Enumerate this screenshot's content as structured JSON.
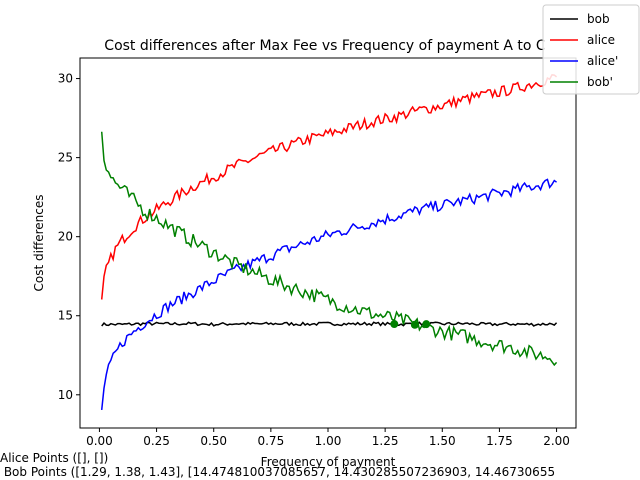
{
  "chart_data": {
    "type": "line",
    "title": "Cost differences after Max Fee vs Frequency of payment A to C",
    "xlabel": "Frequency of payment",
    "ylabel": "Cost differences",
    "xlim": [
      -0.085,
      2.085
    ],
    "ylim": [
      7.9,
      31.3
    ],
    "xticks": [
      "0.00",
      "0.25",
      "0.50",
      "0.75",
      "1.00",
      "1.25",
      "1.50",
      "1.75",
      "2.00"
    ],
    "yticks": [
      "10",
      "15",
      "20",
      "25",
      "30"
    ],
    "grid": false,
    "legend_position": "top-right",
    "series": [
      {
        "name": "bob",
        "color": "#000000",
        "x": [
          0.01,
          0.1,
          0.2,
          0.3,
          0.4,
          0.5,
          0.6,
          0.7,
          0.8,
          0.9,
          1.0,
          1.1,
          1.2,
          1.3,
          1.4,
          1.5,
          1.6,
          1.7,
          1.8,
          1.9,
          2.0
        ],
        "y": [
          14.45,
          14.45,
          14.5,
          14.48,
          14.5,
          14.45,
          14.5,
          14.48,
          14.5,
          14.47,
          14.5,
          14.48,
          14.5,
          14.45,
          14.5,
          14.48,
          14.5,
          14.45,
          14.48,
          14.45,
          14.5
        ]
      },
      {
        "name": "alice",
        "color": "#ff0000",
        "x": [
          0.01,
          0.02,
          0.03,
          0.05,
          0.07,
          0.1,
          0.15,
          0.2,
          0.25,
          0.3,
          0.4,
          0.5,
          0.6,
          0.7,
          0.8,
          0.9,
          1.0,
          1.1,
          1.2,
          1.3,
          1.4,
          1.5,
          1.6,
          1.7,
          1.8,
          1.9,
          2.0
        ],
        "y": [
          15.8,
          17.2,
          17.9,
          18.6,
          19.2,
          19.8,
          20.6,
          21.2,
          21.7,
          22.2,
          23.1,
          23.8,
          24.5,
          25.1,
          25.6,
          26.1,
          26.5,
          26.9,
          27.3,
          27.6,
          28.0,
          28.3,
          28.7,
          29.0,
          29.3,
          29.7,
          30.1
        ]
      },
      {
        "name": "alice'",
        "color": "#0000ff",
        "x": [
          0.01,
          0.02,
          0.03,
          0.05,
          0.07,
          0.1,
          0.15,
          0.2,
          0.25,
          0.3,
          0.4,
          0.5,
          0.6,
          0.7,
          0.8,
          0.9,
          1.0,
          1.1,
          1.2,
          1.3,
          1.4,
          1.5,
          1.6,
          1.7,
          1.8,
          1.9,
          2.0
        ],
        "y": [
          8.9,
          10.5,
          11.2,
          12.0,
          12.6,
          13.3,
          14.0,
          14.6,
          15.1,
          15.6,
          16.4,
          17.2,
          17.9,
          18.5,
          19.1,
          19.6,
          20.1,
          20.5,
          20.9,
          21.3,
          21.7,
          22.0,
          22.3,
          22.6,
          22.9,
          23.2,
          23.5
        ]
      },
      {
        "name": "bob'",
        "color": "#008000",
        "x": [
          0.01,
          0.02,
          0.03,
          0.05,
          0.07,
          0.1,
          0.15,
          0.2,
          0.25,
          0.3,
          0.4,
          0.5,
          0.6,
          0.7,
          0.8,
          0.9,
          1.0,
          1.1,
          1.2,
          1.3,
          1.4,
          1.5,
          1.6,
          1.7,
          1.8,
          1.9,
          2.0
        ],
        "y": [
          26.8,
          25.0,
          24.6,
          23.8,
          23.4,
          23.0,
          22.3,
          21.6,
          21.2,
          20.7,
          19.8,
          19.0,
          18.2,
          17.6,
          17.0,
          16.5,
          16.0,
          15.5,
          15.1,
          14.8,
          14.4,
          14.0,
          13.7,
          13.3,
          13.0,
          12.6,
          12.3
        ]
      }
    ],
    "points": {
      "color": "#008000",
      "x": [
        1.29,
        1.38,
        1.43
      ],
      "y": [
        14.47481,
        14.43029,
        14.46731
      ]
    }
  },
  "footer": {
    "alice_points": "Alice Points ([], [])",
    "bob_points": " Bob Points ([1.29, 1.38, 1.43], [14.474810037085657, 14.430285507236903, 14.46730655"
  }
}
